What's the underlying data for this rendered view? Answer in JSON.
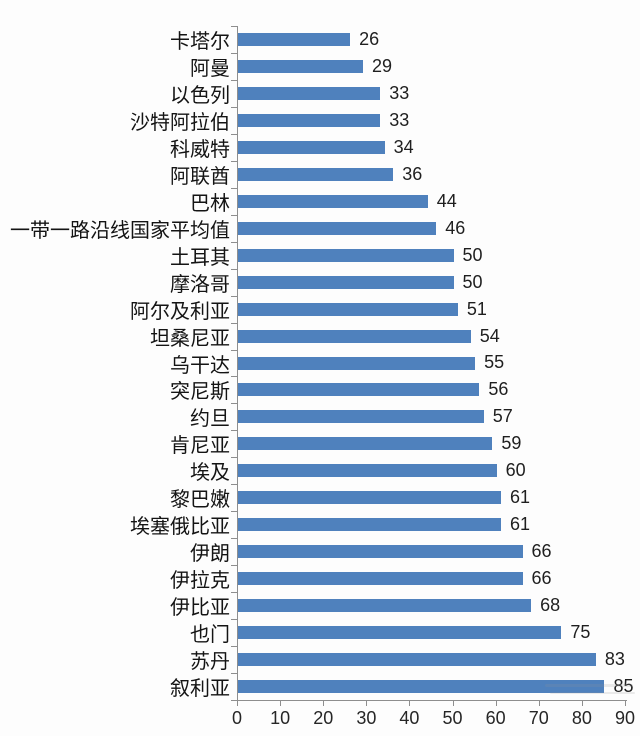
{
  "chart_data": {
    "type": "bar",
    "orientation": "horizontal",
    "title": "",
    "xlabel": "",
    "ylabel": "",
    "xlim": [
      0,
      90
    ],
    "x_ticks": [
      0,
      10,
      20,
      30,
      40,
      50,
      60,
      70,
      80,
      90
    ],
    "grid": false,
    "legend": false,
    "value_labels_shown": true,
    "categories": [
      "卡塔尔",
      "阿曼",
      "以色列",
      "沙特阿拉伯",
      "科威特",
      "阿联酋",
      "巴林",
      "一带一路沿线国家平均值",
      "土耳其",
      "摩洛哥",
      "阿尔及利亚",
      "坦桑尼亚",
      "乌干达",
      "突尼斯",
      "约旦",
      "肯尼亚",
      "埃及",
      "黎巴嫩",
      "埃塞俄比亚",
      "伊朗",
      "伊拉克",
      "伊比亚",
      "也门",
      "苏丹",
      "叙利亚"
    ],
    "values": [
      26,
      29,
      33,
      33,
      34,
      36,
      44,
      46,
      50,
      50,
      51,
      54,
      55,
      56,
      57,
      59,
      60,
      61,
      61,
      66,
      66,
      68,
      75,
      83,
      85
    ],
    "colors": {
      "bar": "#4f81bd",
      "axis": "#8e8e8e",
      "category_text": "#141414",
      "value_text": "#1f1f1f",
      "background": "#fdfdfd"
    }
  }
}
